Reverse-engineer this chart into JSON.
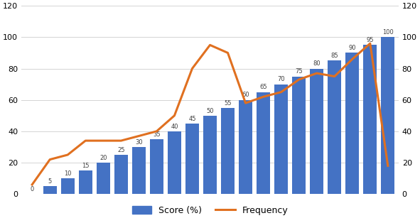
{
  "categories": [
    0,
    5,
    10,
    15,
    20,
    25,
    30,
    35,
    40,
    45,
    50,
    55,
    60,
    65,
    70,
    75,
    80,
    85,
    90,
    95,
    100
  ],
  "bar_values": [
    0,
    5,
    10,
    15,
    20,
    25,
    30,
    35,
    40,
    45,
    50,
    55,
    60,
    65,
    70,
    75,
    80,
    85,
    90,
    95,
    100
  ],
  "frequency": [
    6,
    22,
    25,
    34,
    34,
    34,
    37,
    40,
    50,
    80,
    95,
    90,
    58,
    62,
    65,
    73,
    77,
    75,
    86,
    96,
    18
  ],
  "bar_color": "#4472C4",
  "line_color": "#E07020",
  "ylim": [
    0,
    120
  ],
  "yticks": [
    0,
    20,
    40,
    60,
    80,
    100,
    120
  ],
  "figsize": [
    5.91,
    3.14
  ],
  "dpi": 100,
  "legend_labels": [
    "Score (%)",
    "Frequency"
  ],
  "bg_color": "#ffffff",
  "grid_color": "#d4d4d4"
}
